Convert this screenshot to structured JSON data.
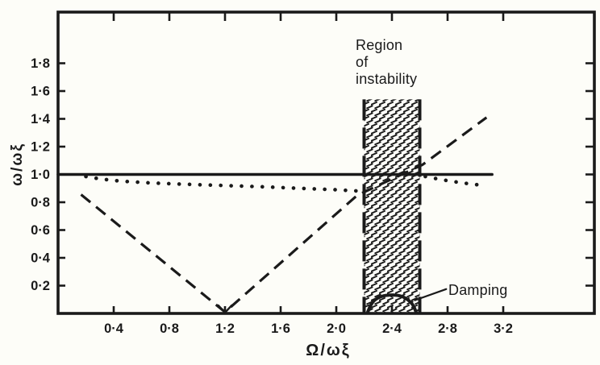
{
  "figure": {
    "ink_color": "#1a1a1a",
    "paper_color": "#fdfdf8"
  },
  "chart_data": {
    "type": "line",
    "title": "",
    "xlabel": "Ω/ωξ",
    "ylabel": "ω/ωξ",
    "xlim": [
      0,
      3.86
    ],
    "ylim": [
      0,
      2.17
    ],
    "grid": false,
    "x_ticks": [
      0.4,
      0.8,
      1.2,
      1.6,
      2.0,
      2.4,
      2.8,
      3.2
    ],
    "x_tick_labels": [
      "0·4",
      "0·8",
      "1·2",
      "1·6",
      "2·0",
      "2·4",
      "2·8",
      "3·2"
    ],
    "y_ticks": [
      0.2,
      0.4,
      0.6,
      0.8,
      1.0,
      1.2,
      1.4,
      1.6,
      1.8
    ],
    "y_tick_labels": [
      "0·2",
      "0·4",
      "0·6",
      "0·8",
      "1·0",
      "1·2",
      "1·4",
      "1·6",
      "1·8"
    ],
    "instability_band": {
      "x_start": 2.2,
      "x_end": 2.6,
      "y_bottom": 0,
      "y_top": 1.54,
      "label": "Region\nof\ninstability"
    },
    "series": [
      {
        "name": "natural-frequency-line",
        "style": "solid",
        "width": 3.5,
        "points": [
          [
            0,
            1.0
          ],
          [
            3.12,
            1.0
          ]
        ]
      },
      {
        "name": "whirl-frequency-dotted-left",
        "style": "dotted",
        "points": [
          [
            0.2,
            0.985
          ],
          [
            0.3,
            0.968
          ],
          [
            0.45,
            0.952
          ],
          [
            0.65,
            0.94
          ],
          [
            0.9,
            0.93
          ],
          [
            1.15,
            0.922
          ],
          [
            1.45,
            0.912
          ],
          [
            1.75,
            0.9
          ],
          [
            2.0,
            0.89
          ],
          [
            2.2,
            0.878
          ]
        ]
      },
      {
        "name": "whirl-frequency-dotted-right",
        "style": "dotted",
        "points": [
          [
            2.64,
            0.985
          ],
          [
            2.76,
            0.962
          ],
          [
            2.9,
            0.94
          ],
          [
            3.02,
            0.925
          ]
        ]
      },
      {
        "name": "whirl-speed-dashed",
        "style": "dashed",
        "points": [
          [
            0.165,
            0.855
          ],
          [
            1.2,
            0.01
          ],
          [
            2.15,
            0.85
          ],
          [
            2.62,
            1.07
          ],
          [
            3.08,
            1.41
          ]
        ]
      },
      {
        "name": "vertex-arrow",
        "style": "solid",
        "width": 2.4,
        "points": [
          [
            1.152,
            0.058
          ],
          [
            1.2,
            0.006
          ],
          [
            1.248,
            0.058
          ]
        ]
      },
      {
        "name": "damping-curve",
        "style": "solid",
        "width": 4,
        "smooth": true,
        "points": [
          [
            2.225,
            0.005
          ],
          [
            2.25,
            0.08
          ],
          [
            2.32,
            0.125
          ],
          [
            2.4,
            0.135
          ],
          [
            2.48,
            0.125
          ],
          [
            2.55,
            0.07
          ],
          [
            2.575,
            0.005
          ]
        ]
      },
      {
        "name": "damping-leader",
        "style": "solid",
        "width": 2.2,
        "points": [
          [
            2.565,
            0.095
          ],
          [
            2.79,
            0.175
          ]
        ]
      }
    ],
    "annotations": [
      {
        "id": "region-of-instability",
        "text": "Region\nof\ninstability"
      },
      {
        "id": "damping",
        "text": "Damping"
      }
    ]
  }
}
